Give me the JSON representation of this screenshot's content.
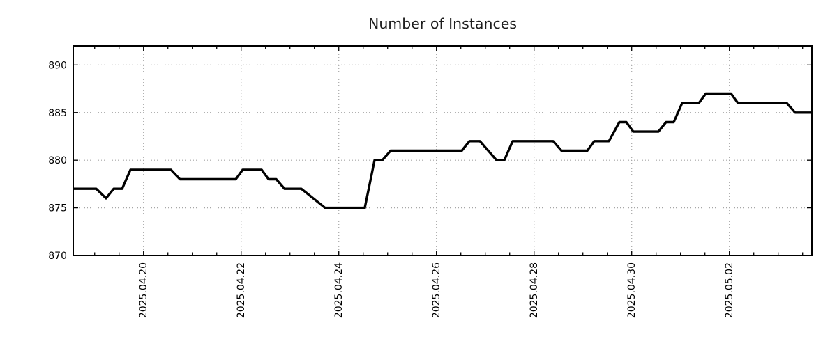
{
  "chart_data": {
    "type": "line",
    "title": "Number of Instances",
    "xlabel": "",
    "ylabel": "",
    "legend": "none",
    "grid": {
      "visible": true,
      "style": "dotted",
      "color": "#a6a6a6"
    },
    "axis_color": "#000000",
    "background_color": "#ffffff",
    "y_axis": {
      "range": [
        870,
        892.0
      ],
      "ticks": [
        870,
        875,
        880,
        885,
        890
      ]
    },
    "x_axis": {
      "unit": "days since 2025-04-18 00:00",
      "range": [
        0.561,
        15.69
      ],
      "minor_tick_start": 1.0,
      "minor_tick_step": 0.5,
      "minor_tick_end": 15.5,
      "major_ticks": [
        {
          "t": 2,
          "label": "2025.04.20"
        },
        {
          "t": 4,
          "label": "2025.04.22"
        },
        {
          "t": 6,
          "label": "2025.04.24"
        },
        {
          "t": 8,
          "label": "2025.04.26"
        },
        {
          "t": 10,
          "label": "2025.04.28"
        },
        {
          "t": 12,
          "label": "2025.04.30"
        },
        {
          "t": 14,
          "label": "2025.05.02"
        }
      ]
    },
    "series": [
      {
        "name": "instances",
        "color": "#000000",
        "points": [
          [
            0.561,
            877
          ],
          [
            1.033,
            877
          ],
          [
            1.233,
            876
          ],
          [
            1.39,
            877
          ],
          [
            1.562,
            877
          ],
          [
            1.733,
            879
          ],
          [
            2.562,
            879
          ],
          [
            2.747,
            878
          ],
          [
            3.89,
            878
          ],
          [
            4.033,
            879
          ],
          [
            4.419,
            879
          ],
          [
            4.562,
            878
          ],
          [
            4.719,
            878
          ],
          [
            4.89,
            877
          ],
          [
            5.233,
            877
          ],
          [
            5.719,
            875
          ],
          [
            6.533,
            875
          ],
          [
            6.733,
            880
          ],
          [
            6.89,
            880
          ],
          [
            7.061,
            881
          ],
          [
            8.519,
            881
          ],
          [
            8.676,
            882
          ],
          [
            8.89,
            882
          ],
          [
            9.233,
            880
          ],
          [
            9.39,
            880
          ],
          [
            9.561,
            882
          ],
          [
            10.39,
            882
          ],
          [
            10.561,
            881
          ],
          [
            11.09,
            881
          ],
          [
            11.233,
            882
          ],
          [
            11.533,
            882
          ],
          [
            11.747,
            884
          ],
          [
            11.89,
            884
          ],
          [
            12.033,
            883
          ],
          [
            12.547,
            883
          ],
          [
            12.704,
            884
          ],
          [
            12.861,
            884
          ],
          [
            13.033,
            886
          ],
          [
            13.376,
            886
          ],
          [
            13.519,
            887
          ],
          [
            14.033,
            887
          ],
          [
            14.176,
            886
          ],
          [
            15.176,
            886
          ],
          [
            15.347,
            885
          ],
          [
            15.69,
            885
          ]
        ]
      }
    ]
  }
}
